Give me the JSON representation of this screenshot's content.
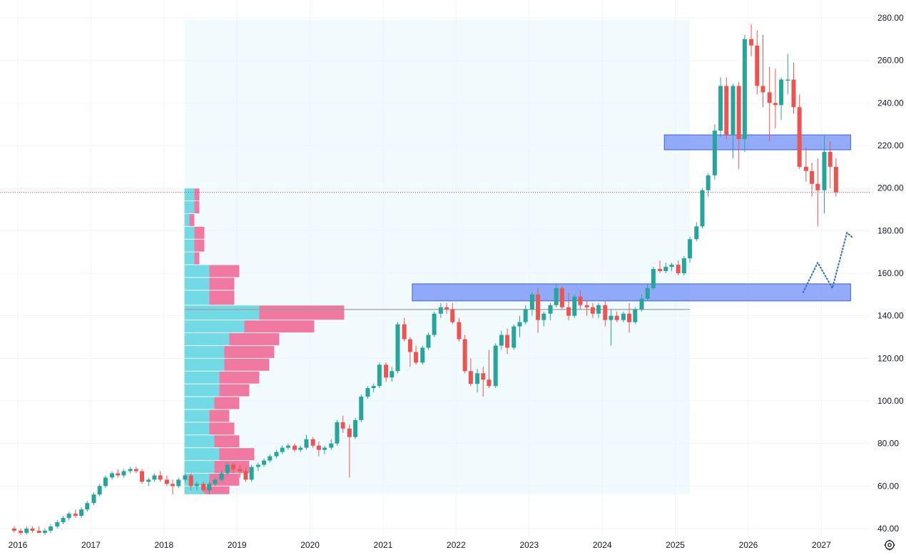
{
  "chart_data": {
    "type": "candlestick",
    "y_axis": {
      "ticks": [
        "40.00",
        "60.00",
        "80.00",
        "100.00",
        "120.00",
        "140.00",
        "160.00",
        "180.00",
        "200.00",
        "220.00",
        "240.00",
        "260.00",
        "280.00"
      ],
      "ylim": [
        37,
        282
      ]
    },
    "x_axis": {
      "ticks": [
        "2016",
        "2017",
        "2018",
        "2019",
        "2020",
        "2021",
        "2022",
        "2023",
        "2024",
        "2025",
        "2026",
        "2027"
      ]
    },
    "colors": {
      "up": "#26a69a",
      "down": "#ef5350",
      "vp_up": "#5bd3e0",
      "vp_down": "#f06292",
      "zone": "#6f8ff7",
      "zone_border": "#3d5ee8",
      "vp_bg": "#e8f6fb",
      "grid": "#f0f3fa",
      "projection": "#2f6fb8",
      "dotted_price": "#c0504d",
      "poc": "#9e9e9e"
    },
    "candles": [
      [
        2015.95,
        40,
        41,
        38,
        39
      ],
      [
        2016.04,
        39,
        40,
        37,
        38
      ],
      [
        2016.12,
        38,
        41,
        37,
        40
      ],
      [
        2016.2,
        40,
        41,
        38,
        39
      ],
      [
        2016.29,
        39,
        41,
        38,
        38
      ],
      [
        2016.37,
        38,
        40,
        37,
        39
      ],
      [
        2016.45,
        39,
        42,
        38,
        41
      ],
      [
        2016.54,
        41,
        44,
        40,
        43
      ],
      [
        2016.62,
        43,
        46,
        42,
        45
      ],
      [
        2016.7,
        45,
        48,
        44,
        47
      ],
      [
        2016.79,
        47,
        49,
        45,
        46
      ],
      [
        2016.87,
        46,
        50,
        45,
        49
      ],
      [
        2016.95,
        49,
        53,
        48,
        52
      ],
      [
        2017.04,
        52,
        57,
        51,
        56
      ],
      [
        2017.12,
        56,
        61,
        55,
        60
      ],
      [
        2017.2,
        60,
        65,
        59,
        64
      ],
      [
        2017.29,
        64,
        67,
        63,
        66
      ],
      [
        2017.37,
        66,
        68,
        64,
        65
      ],
      [
        2017.45,
        65,
        68,
        64,
        67
      ],
      [
        2017.54,
        67,
        69,
        66,
        68
      ],
      [
        2017.62,
        68,
        69,
        66,
        67
      ],
      [
        2017.7,
        67,
        68,
        61,
        62
      ],
      [
        2017.79,
        62,
        64,
        60,
        63
      ],
      [
        2017.87,
        63,
        66,
        62,
        65
      ],
      [
        2017.95,
        65,
        67,
        62,
        63
      ],
      [
        2018.04,
        63,
        65,
        60,
        61
      ],
      [
        2018.12,
        61,
        63,
        56,
        60
      ],
      [
        2018.2,
        60,
        64,
        59,
        63
      ],
      [
        2018.29,
        63,
        66,
        62,
        65
      ],
      [
        2018.37,
        65,
        66,
        58,
        60
      ],
      [
        2018.45,
        60,
        62,
        58,
        61
      ],
      [
        2018.54,
        61,
        62,
        57,
        58
      ],
      [
        2018.62,
        58,
        62,
        56,
        61
      ],
      [
        2018.7,
        61,
        64,
        60,
        63
      ],
      [
        2018.79,
        63,
        67,
        62,
        66
      ],
      [
        2018.87,
        66,
        71,
        65,
        70
      ],
      [
        2018.95,
        70,
        71,
        66,
        68
      ],
      [
        2019.04,
        68,
        70,
        64,
        67
      ],
      [
        2019.12,
        67,
        69,
        62,
        63
      ],
      [
        2019.2,
        63,
        70,
        62,
        69
      ],
      [
        2019.29,
        69,
        71,
        67,
        70
      ],
      [
        2019.37,
        70,
        73,
        69,
        72
      ],
      [
        2019.45,
        72,
        75,
        71,
        74
      ],
      [
        2019.54,
        74,
        77,
        73,
        76
      ],
      [
        2019.62,
        76,
        79,
        75,
        78
      ],
      [
        2019.7,
        78,
        80,
        77,
        79
      ],
      [
        2019.79,
        79,
        80,
        76,
        77
      ],
      [
        2019.87,
        77,
        79,
        76,
        78
      ],
      [
        2019.95,
        78,
        84,
        77,
        82
      ],
      [
        2020.04,
        82,
        83,
        78,
        79
      ],
      [
        2020.12,
        79,
        81,
        74,
        77
      ],
      [
        2020.2,
        77,
        79,
        75,
        78
      ],
      [
        2020.29,
        78,
        82,
        77,
        80
      ],
      [
        2020.37,
        80,
        91,
        79,
        90
      ],
      [
        2020.45,
        90,
        93,
        85,
        87
      ],
      [
        2020.54,
        87,
        89,
        64,
        83
      ],
      [
        2020.62,
        83,
        92,
        82,
        91
      ],
      [
        2020.7,
        91,
        103,
        90,
        102
      ],
      [
        2020.79,
        102,
        107,
        101,
        106
      ],
      [
        2020.87,
        106,
        108,
        104,
        107
      ],
      [
        2020.95,
        107,
        118,
        106,
        117
      ],
      [
        2021.04,
        117,
        118,
        109,
        111
      ],
      [
        2021.12,
        111,
        116,
        109,
        114
      ],
      [
        2021.2,
        114,
        137,
        113,
        136
      ],
      [
        2021.29,
        136,
        139,
        128,
        129
      ],
      [
        2021.37,
        129,
        130,
        116,
        123
      ],
      [
        2021.45,
        123,
        126,
        117,
        118
      ],
      [
        2021.54,
        118,
        126,
        117,
        125
      ],
      [
        2021.62,
        125,
        132,
        124,
        131
      ],
      [
        2021.7,
        131,
        142,
        130,
        141
      ],
      [
        2021.79,
        141,
        146,
        139,
        144
      ],
      [
        2021.87,
        144,
        146,
        141,
        143
      ],
      [
        2021.95,
        143,
        146,
        136,
        137
      ],
      [
        2022.04,
        137,
        139,
        128,
        129
      ],
      [
        2022.12,
        129,
        131,
        113,
        114
      ],
      [
        2022.2,
        114,
        120,
        107,
        108
      ],
      [
        2022.29,
        108,
        115,
        104,
        113
      ],
      [
        2022.37,
        113,
        116,
        102,
        110
      ],
      [
        2022.45,
        110,
        124,
        106,
        107
      ],
      [
        2022.54,
        107,
        127,
        106,
        126
      ],
      [
        2022.62,
        126,
        133,
        124,
        131
      ],
      [
        2022.7,
        131,
        134,
        122,
        125
      ],
      [
        2022.79,
        125,
        136,
        124,
        135
      ],
      [
        2022.87,
        135,
        140,
        130,
        137
      ],
      [
        2022.95,
        137,
        145,
        136,
        143
      ],
      [
        2023.04,
        143,
        151,
        140,
        150
      ],
      [
        2023.12,
        150,
        153,
        132,
        138
      ],
      [
        2023.2,
        138,
        142,
        135,
        141
      ],
      [
        2023.29,
        141,
        146,
        138,
        145
      ],
      [
        2023.37,
        145,
        155,
        144,
        153
      ],
      [
        2023.45,
        153,
        154,
        143,
        144
      ],
      [
        2023.54,
        144,
        151,
        138,
        140
      ],
      [
        2023.62,
        140,
        150,
        139,
        149
      ],
      [
        2023.7,
        149,
        152,
        143,
        145
      ],
      [
        2023.79,
        145,
        147,
        140,
        144
      ],
      [
        2023.87,
        144,
        146,
        139,
        141
      ],
      [
        2023.95,
        141,
        146,
        139,
        145
      ],
      [
        2024.04,
        145,
        147,
        135,
        138
      ],
      [
        2024.12,
        138,
        143,
        126,
        140
      ],
      [
        2024.2,
        140,
        142,
        137,
        138
      ],
      [
        2024.29,
        138,
        142,
        137,
        141
      ],
      [
        2024.37,
        141,
        146,
        132,
        137
      ],
      [
        2024.45,
        137,
        144,
        136,
        143
      ],
      [
        2024.54,
        143,
        150,
        142,
        148
      ],
      [
        2024.62,
        148,
        155,
        147,
        153
      ],
      [
        2024.7,
        153,
        163,
        152,
        162
      ],
      [
        2024.79,
        162,
        166,
        160,
        161
      ],
      [
        2024.87,
        161,
        165,
        160,
        163
      ],
      [
        2024.95,
        163,
        165,
        161,
        164
      ],
      [
        2025.04,
        164,
        166,
        159,
        160
      ],
      [
        2025.12,
        160,
        168,
        159,
        167
      ],
      [
        2025.2,
        167,
        177,
        165,
        176
      ],
      [
        2025.29,
        176,
        184,
        175,
        182
      ],
      [
        2025.37,
        182,
        200,
        181,
        199
      ],
      [
        2025.45,
        199,
        207,
        196,
        206
      ],
      [
        2025.54,
        206,
        230,
        204,
        227
      ],
      [
        2025.62,
        227,
        252,
        224,
        248
      ],
      [
        2025.7,
        248,
        252,
        223,
        225
      ],
      [
        2025.79,
        225,
        249,
        214,
        248
      ],
      [
        2025.87,
        248,
        250,
        209,
        223
      ],
      [
        2025.95,
        223,
        272,
        217,
        270
      ],
      [
        2026.04,
        270,
        277,
        262,
        267
      ],
      [
        2026.12,
        267,
        274,
        244,
        248
      ],
      [
        2026.2,
        248,
        272,
        238,
        245
      ],
      [
        2026.29,
        245,
        257,
        222,
        240
      ],
      [
        2026.37,
        240,
        256,
        228,
        239
      ],
      [
        2026.45,
        239,
        252,
        232,
        251
      ],
      [
        2026.54,
        251,
        263,
        244,
        251
      ],
      [
        2026.62,
        251,
        259,
        235,
        238
      ],
      [
        2026.7,
        238,
        244,
        209,
        210
      ],
      [
        2026.79,
        210,
        219,
        203,
        208
      ],
      [
        2026.87,
        208,
        212,
        196,
        202
      ],
      [
        2026.95,
        202,
        214,
        182,
        199
      ],
      [
        2027.04,
        199,
        225,
        188,
        217
      ],
      [
        2027.12,
        217,
        222,
        200,
        210
      ],
      [
        2027.2,
        210,
        214,
        196,
        198
      ]
    ],
    "volume_profile": [
      [
        56,
        60,
        0.04,
        0.05
      ],
      [
        60,
        66,
        0.05,
        0.06
      ],
      [
        66,
        72,
        0.06,
        0.07
      ],
      [
        72,
        78,
        0.07,
        0.07
      ],
      [
        78,
        84,
        0.06,
        0.05
      ],
      [
        84,
        90,
        0.05,
        0.05
      ],
      [
        90,
        96,
        0.05,
        0.04
      ],
      [
        96,
        102,
        0.06,
        0.05
      ],
      [
        102,
        108,
        0.07,
        0.06
      ],
      [
        108,
        114,
        0.07,
        0.08
      ],
      [
        114,
        120,
        0.08,
        0.09
      ],
      [
        120,
        126,
        0.08,
        0.1
      ],
      [
        126,
        132,
        0.09,
        0.1
      ],
      [
        132,
        138,
        0.12,
        0.14
      ],
      [
        138,
        145,
        0.15,
        0.17
      ],
      [
        145,
        152,
        0.05,
        0.05
      ],
      [
        152,
        158,
        0.05,
        0.05
      ],
      [
        158,
        164,
        0.05,
        0.06
      ],
      [
        164,
        170,
        0.02,
        0.01
      ],
      [
        170,
        176,
        0.02,
        0.02
      ],
      [
        176,
        182,
        0.02,
        0.02
      ],
      [
        182,
        188,
        0.01,
        0.01
      ],
      [
        188,
        194,
        0.02,
        0.01
      ],
      [
        194,
        200,
        0.02,
        0.01
      ]
    ],
    "poc_price": 143,
    "current_price": 198,
    "zones": [
      {
        "y1": 147,
        "y2": 155,
        "x_start": 2021.4,
        "x_end": 2027.4
      },
      {
        "y1": 218,
        "y2": 225,
        "x_start": 2024.85,
        "x_end": 2027.4
      }
    ],
    "projection": [
      [
        2026.75,
        151
      ],
      [
        2026.95,
        165
      ],
      [
        2027.15,
        153
      ],
      [
        2027.35,
        179
      ],
      [
        2027.42,
        177
      ]
    ]
  }
}
